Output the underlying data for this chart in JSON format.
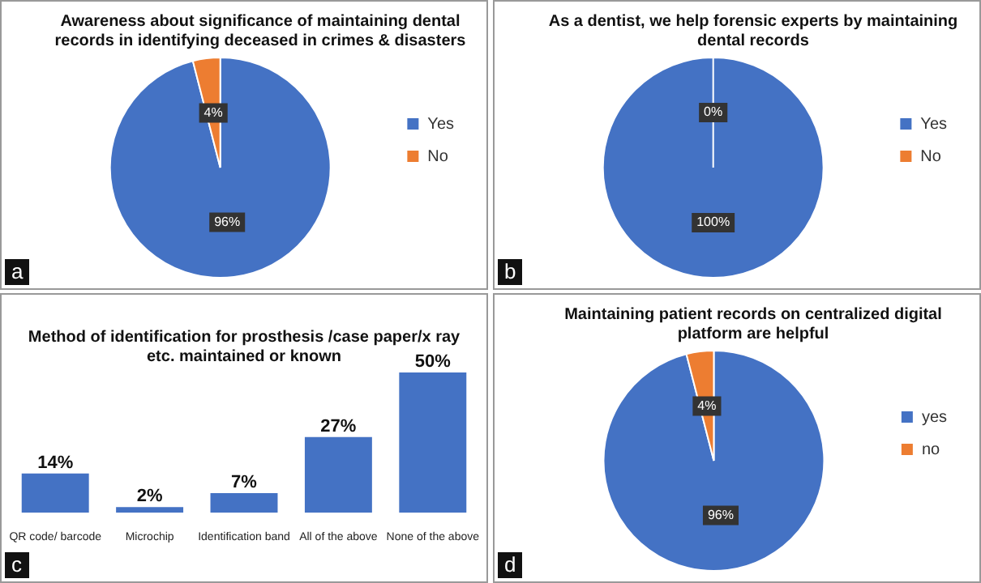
{
  "chart_data": [
    {
      "type": "pie",
      "title": "Awareness about significance of maintaining dental records in identifying deceased in crimes & disasters",
      "categories": [
        "Yes",
        "No"
      ],
      "values": [
        96,
        4
      ],
      "colors": [
        "#4472c4",
        "#ed7d31"
      ],
      "value_labels": [
        "96%",
        "4%"
      ],
      "legend": "right",
      "annotations": [
        "a"
      ]
    },
    {
      "type": "pie",
      "title": "As a dentist, we help forensic experts by maintaining dental records",
      "categories": [
        "Yes",
        "No"
      ],
      "values": [
        100,
        0
      ],
      "colors": [
        "#4472c4",
        "#ed7d31"
      ],
      "value_labels": [
        "100%",
        "0%"
      ],
      "legend": "right",
      "annotations": [
        "b"
      ]
    },
    {
      "type": "bar",
      "title": "Method of identification for prosthesis /case paper/x ray etc. maintained or known",
      "categories": [
        "QR code/ barcode",
        "Microchip",
        "Identification band",
        "All of the above",
        "None of the above"
      ],
      "values": [
        14,
        2,
        7,
        27,
        50
      ],
      "color": "#4472c4",
      "value_labels": [
        "14%",
        "2%",
        "7%",
        "27%",
        "50%"
      ],
      "tick_labels": "x",
      "annotations": [
        "c"
      ]
    },
    {
      "type": "pie",
      "title": "Maintaining patient records on centralized digital platform are helpful",
      "categories": [
        "yes",
        "no"
      ],
      "values": [
        96,
        4
      ],
      "colors": [
        "#4472c4",
        "#ed7d31"
      ],
      "value_labels": [
        "96%",
        "4%"
      ],
      "legend": "right",
      "annotations": [
        "d"
      ]
    }
  ]
}
